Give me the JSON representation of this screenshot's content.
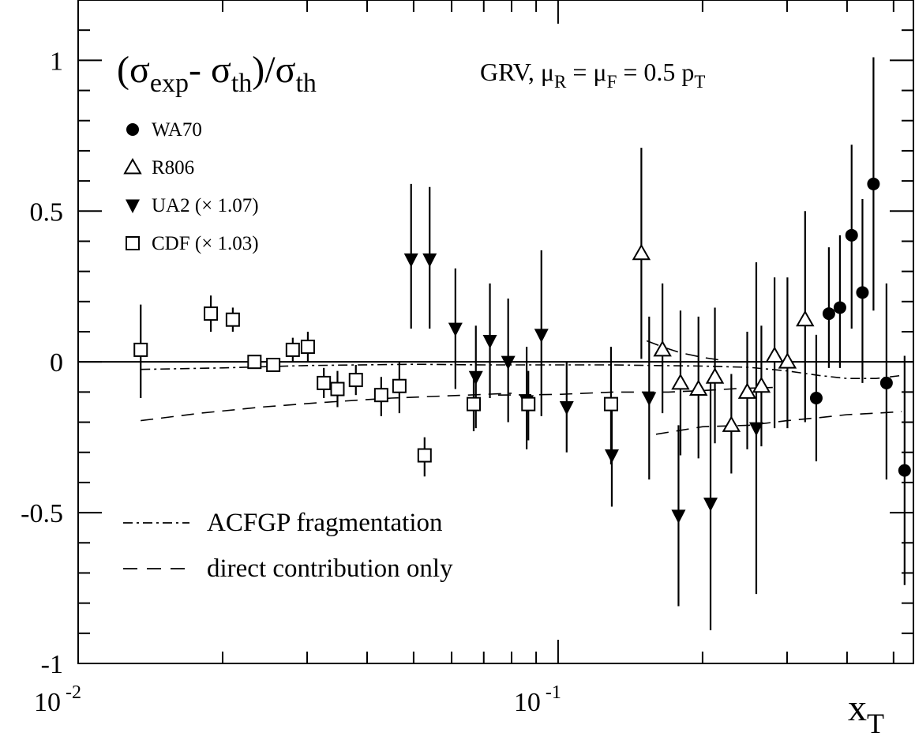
{
  "chart_data": {
    "type": "scatter",
    "title": "(σexp- σth)/σth",
    "title_parts": {
      "a": "(σ",
      "a_sub": "exp",
      "b": "- σ",
      "b_sub": "th",
      "c": ")/σ",
      "c_sub": "th"
    },
    "annotation": "GRV, μR = μF = 0.5 pT",
    "annotation_parts": {
      "a": "GRV, μ",
      "a_sub": "R",
      "b": " = μ",
      "b_sub": "F",
      "c": " = 0.5 p",
      "c_sub": "T"
    },
    "xlabel": "x",
    "xlabel_sub": "T",
    "x_scale": "log",
    "xlim": [
      0.01,
      0.55
    ],
    "ylim": [
      -1,
      1.2
    ],
    "x_ticks": [
      {
        "value": 0.01,
        "base": "10",
        "exp": "-2"
      },
      {
        "value": 0.1,
        "base": "10",
        "exp": "-1"
      }
    ],
    "y_ticks": [
      {
        "value": 1,
        "label": "1"
      },
      {
        "value": 0.5,
        "label": "0.5"
      },
      {
        "value": 0,
        "label": "0"
      },
      {
        "value": -0.5,
        "label": "-0.5"
      },
      {
        "value": -1,
        "label": "-1"
      }
    ],
    "reference_line_y": 0,
    "legend_position": "top-left",
    "series": [
      {
        "name": "WA70",
        "marker": "filled-circle",
        "points": [
          {
            "x": 0.3451,
            "y": -0.12,
            "lo": -0.33,
            "hi": 0.09
          },
          {
            "x": 0.3666,
            "y": 0.16,
            "lo": -0.02,
            "hi": 0.38
          },
          {
            "x": 0.3866,
            "y": 0.18,
            "lo": -0.02,
            "hi": 0.42
          },
          {
            "x": 0.4089,
            "y": 0.42,
            "lo": 0.11,
            "hi": 0.72
          },
          {
            "x": 0.4307,
            "y": 0.23,
            "lo": -0.07,
            "hi": 0.54
          },
          {
            "x": 0.4541,
            "y": 0.59,
            "lo": 0.17,
            "hi": 1.01
          },
          {
            "x": 0.4833,
            "y": -0.07,
            "lo": -0.39,
            "hi": 0.26
          },
          {
            "x": 0.5272,
            "y": -0.36,
            "lo": -0.74,
            "hi": 0.02
          }
        ]
      },
      {
        "name": "R806",
        "marker": "open-triangle-up",
        "points": [
          {
            "x": 0.1491,
            "y": 0.36,
            "lo": 0.01,
            "hi": 0.71
          },
          {
            "x": 0.165,
            "y": 0.04,
            "lo": -0.17,
            "hi": 0.26
          },
          {
            "x": 0.1799,
            "y": -0.07,
            "lo": -0.31,
            "hi": 0.17
          },
          {
            "x": 0.1961,
            "y": -0.09,
            "lo": -0.32,
            "hi": 0.15
          },
          {
            "x": 0.2122,
            "y": -0.05,
            "lo": -0.27,
            "hi": 0.18
          },
          {
            "x": 0.2296,
            "y": -0.21,
            "lo": -0.37,
            "hi": -0.04
          },
          {
            "x": 0.2478,
            "y": -0.1,
            "lo": -0.29,
            "hi": 0.1
          },
          {
            "x": 0.2652,
            "y": -0.08,
            "lo": -0.28,
            "hi": 0.12
          },
          {
            "x": 0.2825,
            "y": 0.02,
            "lo": -0.22,
            "hi": 0.28
          },
          {
            "x": 0.3005,
            "y": 0.0,
            "lo": -0.22,
            "hi": 0.28
          },
          {
            "x": 0.3271,
            "y": 0.14,
            "lo": -0.2,
            "hi": 0.5
          }
        ]
      },
      {
        "name": "UA2 (× 1.07)",
        "marker": "filled-triangle-down",
        "points": [
          {
            "x": 0.0494,
            "y": 0.34,
            "lo": 0.11,
            "hi": 0.59
          },
          {
            "x": 0.054,
            "y": 0.34,
            "lo": 0.11,
            "hi": 0.58
          },
          {
            "x": 0.0611,
            "y": 0.11,
            "lo": -0.09,
            "hi": 0.31
          },
          {
            "x": 0.0721,
            "y": 0.07,
            "lo": -0.12,
            "hi": 0.26
          },
          {
            "x": 0.0787,
            "y": 0.0,
            "lo": -0.2,
            "hi": 0.21
          },
          {
            "x": 0.0674,
            "y": -0.05,
            "lo": -0.22,
            "hi": 0.12
          },
          {
            "x": 0.086,
            "y": -0.13,
            "lo": -0.29,
            "hi": 0.05
          },
          {
            "x": 0.0923,
            "y": 0.09,
            "lo": -0.18,
            "hi": 0.37
          },
          {
            "x": 0.1042,
            "y": -0.15,
            "lo": -0.3,
            "hi": 0.0
          },
          {
            "x": 0.1294,
            "y": -0.31,
            "lo": -0.48,
            "hi": -0.15
          },
          {
            "x": 0.1548,
            "y": -0.12,
            "lo": -0.39,
            "hi": 0.15
          },
          {
            "x": 0.1782,
            "y": -0.51,
            "lo": -0.81,
            "hi": -0.21
          },
          {
            "x": 0.2078,
            "y": -0.47,
            "lo": -0.89,
            "hi": -0.05
          },
          {
            "x": 0.2588,
            "y": -0.22,
            "lo": -0.77,
            "hi": 0.33
          }
        ]
      },
      {
        "name": "CDF (× 1.03)",
        "marker": "open-square",
        "points": [
          {
            "x": 0.0135,
            "y": 0.04,
            "lo": -0.12,
            "hi": 0.19
          },
          {
            "x": 0.0189,
            "y": 0.16,
            "lo": 0.1,
            "hi": 0.22
          },
          {
            "x": 0.021,
            "y": 0.14,
            "lo": 0.1,
            "hi": 0.18
          },
          {
            "x": 0.0233,
            "y": 0.0,
            "lo": -0.02,
            "hi": 0.02
          },
          {
            "x": 0.0255,
            "y": -0.01,
            "lo": -0.03,
            "hi": 0.01
          },
          {
            "x": 0.028,
            "y": 0.04,
            "lo": 0.0,
            "hi": 0.08
          },
          {
            "x": 0.0301,
            "y": 0.05,
            "lo": 0.0,
            "hi": 0.1
          },
          {
            "x": 0.0325,
            "y": -0.07,
            "lo": -0.12,
            "hi": -0.02
          },
          {
            "x": 0.0347,
            "y": -0.09,
            "lo": -0.15,
            "hi": -0.03
          },
          {
            "x": 0.0379,
            "y": -0.06,
            "lo": -0.11,
            "hi": -0.01
          },
          {
            "x": 0.0428,
            "y": -0.11,
            "lo": -0.18,
            "hi": -0.05
          },
          {
            "x": 0.0467,
            "y": -0.08,
            "lo": -0.17,
            "hi": 0.0
          },
          {
            "x": 0.0527,
            "y": -0.31,
            "lo": -0.38,
            "hi": -0.25
          },
          {
            "x": 0.0667,
            "y": -0.14,
            "lo": -0.23,
            "hi": -0.05
          },
          {
            "x": 0.0867,
            "y": -0.14,
            "lo": -0.26,
            "hi": -0.03
          },
          {
            "x": 0.1289,
            "y": -0.14,
            "lo": -0.34,
            "hi": 0.05
          }
        ]
      }
    ],
    "curves": [
      {
        "name": "ACFGP fragmentation",
        "style": "dash-dot",
        "points": [
          [
            0.0135,
            -0.025
          ],
          [
            0.02,
            -0.02
          ],
          [
            0.03,
            -0.012
          ],
          [
            0.05,
            -0.008
          ],
          [
            0.07,
            -0.01
          ],
          [
            0.1,
            -0.01
          ],
          [
            0.13,
            -0.01
          ],
          [
            0.16,
            -0.012
          ],
          [
            0.2,
            -0.014
          ],
          [
            0.25,
            -0.018
          ],
          [
            0.3,
            -0.03
          ],
          [
            0.35,
            -0.045
          ],
          [
            0.4,
            -0.055
          ],
          [
            0.46,
            -0.055
          ],
          [
            0.52,
            -0.045
          ]
        ]
      },
      {
        "name": "direct contribution only",
        "style": "dashed",
        "points": [
          [
            0.0135,
            -0.195
          ],
          [
            0.018,
            -0.17
          ],
          [
            0.024,
            -0.15
          ],
          [
            0.032,
            -0.135
          ],
          [
            0.045,
            -0.12
          ],
          [
            0.065,
            -0.11
          ],
          [
            0.08,
            -0.104
          ]
        ]
      },
      {
        "name": "direct contribution only",
        "style": "dashed",
        "points": [
          [
            0.075,
            -0.11
          ],
          [
            0.1,
            -0.108
          ],
          [
            0.13,
            -0.1
          ],
          [
            0.17,
            -0.1
          ],
          [
            0.2,
            -0.095
          ],
          [
            0.24,
            -0.088
          ],
          [
            0.28,
            -0.085
          ]
        ]
      },
      {
        "name": "direct contribution only",
        "style": "dashed",
        "points": [
          [
            0.16,
            -0.24
          ],
          [
            0.2,
            -0.215
          ],
          [
            0.25,
            -0.21
          ],
          [
            0.3,
            -0.195
          ],
          [
            0.35,
            -0.185
          ],
          [
            0.4,
            -0.175
          ],
          [
            0.46,
            -0.17
          ],
          [
            0.52,
            -0.165
          ]
        ]
      },
      {
        "name": "",
        "style": "dashed",
        "points": [
          [
            0.153,
            0.07
          ],
          [
            0.165,
            0.05
          ],
          [
            0.18,
            0.03
          ],
          [
            0.2,
            0.015
          ],
          [
            0.22,
            0.005
          ]
        ]
      }
    ],
    "curve_legend": [
      {
        "label": "ACFGP fragmentation",
        "style": "dash-dot"
      },
      {
        "label": "direct contribution only",
        "style": "dashed"
      }
    ]
  }
}
